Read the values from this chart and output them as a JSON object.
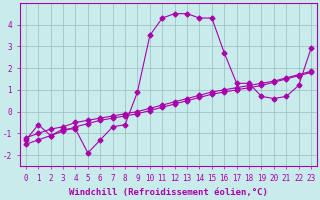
{
  "background_color": "#c8ecec",
  "line_color": "#aa00aa",
  "grid_color": "#9bbcbc",
  "xlabel": "Windchill (Refroidissement éolien,°C)",
  "series": [
    {
      "x": [
        0,
        1,
        2,
        3,
        4,
        5,
        6,
        7,
        8,
        9,
        10,
        11,
        12,
        13,
        14,
        15,
        16,
        17,
        18,
        19,
        20,
        21,
        22,
        23
      ],
      "y": [
        -1.3,
        -0.6,
        -1.1,
        -0.8,
        -0.8,
        -1.9,
        -1.3,
        -0.7,
        -0.6,
        0.9,
        3.5,
        4.3,
        4.5,
        4.5,
        4.3,
        4.3,
        2.7,
        1.3,
        1.3,
        0.7,
        0.6,
        0.7,
        1.2,
        2.9
      ]
    },
    {
      "x": [
        0,
        1,
        2,
        3,
        4,
        5,
        6,
        7,
        8,
        9,
        10,
        11,
        12,
        13,
        14,
        15,
        16,
        17,
        18,
        19,
        20,
        21,
        22,
        23
      ],
      "y": [
        -1.2,
        -1.0,
        -0.8,
        -0.7,
        -0.5,
        -0.4,
        -0.3,
        -0.2,
        -0.1,
        0.0,
        0.15,
        0.3,
        0.45,
        0.6,
        0.75,
        0.9,
        1.0,
        1.1,
        1.2,
        1.3,
        1.4,
        1.55,
        1.7,
        1.85
      ]
    },
    {
      "x": [
        0,
        1,
        2,
        3,
        4,
        5,
        6,
        7,
        8,
        9,
        10,
        11,
        12,
        13,
        14,
        15,
        16,
        17,
        18,
        19,
        20,
        21,
        22,
        23
      ],
      "y": [
        -1.5,
        -1.3,
        -1.1,
        -0.9,
        -0.7,
        -0.55,
        -0.4,
        -0.3,
        -0.2,
        -0.1,
        0.05,
        0.2,
        0.35,
        0.5,
        0.65,
        0.8,
        0.9,
        1.0,
        1.1,
        1.2,
        1.35,
        1.5,
        1.65,
        1.8
      ]
    }
  ],
  "xlim": [
    -0.5,
    23.5
  ],
  "ylim": [
    -2.5,
    5.0
  ],
  "yticks": [
    -2,
    -1,
    0,
    1,
    2,
    3,
    4
  ],
  "xticks": [
    0,
    1,
    2,
    3,
    4,
    5,
    6,
    7,
    8,
    9,
    10,
    11,
    12,
    13,
    14,
    15,
    16,
    17,
    18,
    19,
    20,
    21,
    22,
    23
  ],
  "tick_fontsize": 5.5,
  "xlabel_fontsize": 6.5,
  "marker": "D",
  "marker_size": 2.5,
  "line_width": 0.8
}
